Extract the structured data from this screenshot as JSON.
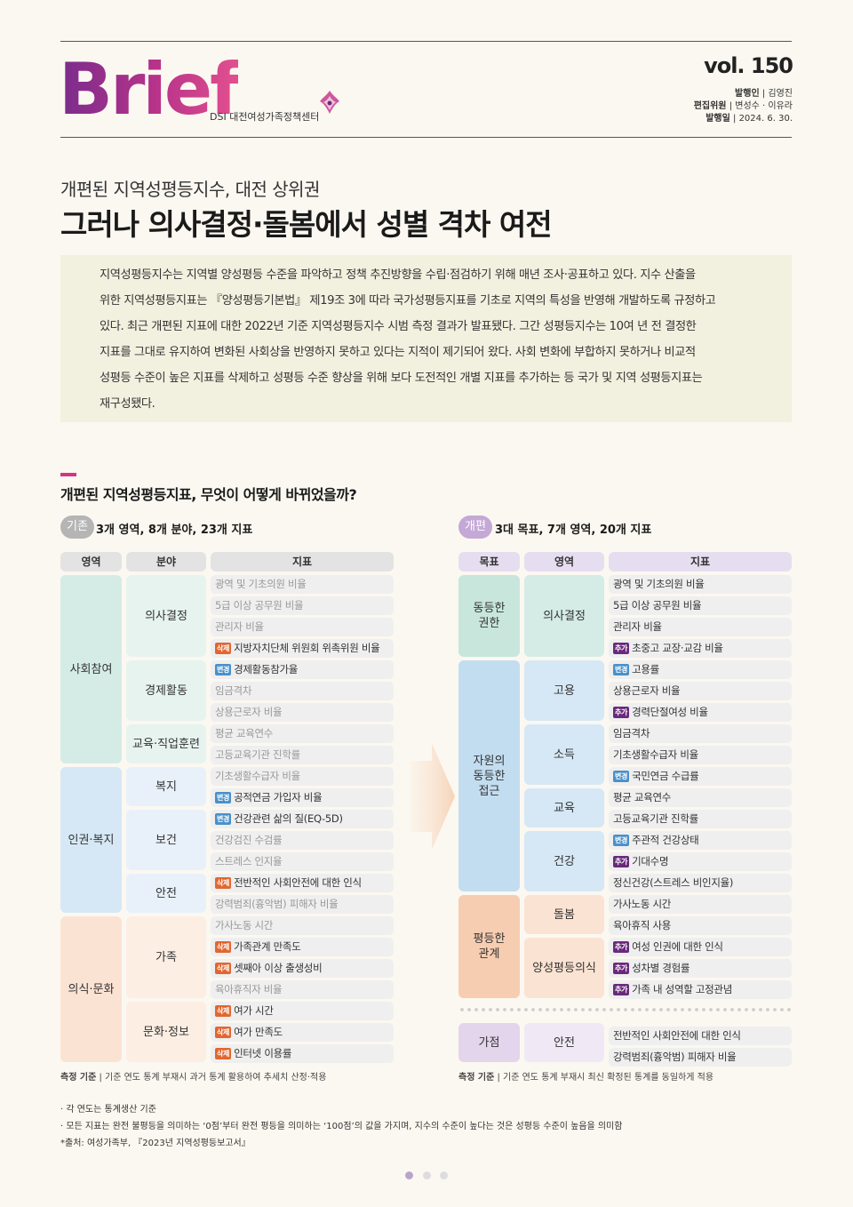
{
  "header": {
    "logo": "Brief",
    "org": "DSI 대전여성가족정책센터",
    "vol": "vol. 150",
    "publisher_label": "발행인",
    "publisher": "| 김영진",
    "editors_label": "편집위원",
    "editors": "| 변성수 · 이유라",
    "date_label": "발행일",
    "date": "| 2024. 6. 30."
  },
  "article": {
    "subtitle": "개편된 지역성평등지수, 대전 상위권",
    "title": "그러나 의사결정·돌봄에서 성별 격차 여전",
    "summary": [
      "지역성평등지수는 지역별 양성평등 수준을 파악하고 정책 추진방향을 수립·점검하기 위해 매년 조사·공표하고 있다. 지수 산출을",
      "위한 지역성평등지표는 『양성평등기본법』 제19조 3에 따라 국가성평등지표를 기초로 지역의 특성을 반영해 개발하도록 규정하고",
      "있다. 최근 개편된 지표에 대한 2022년 기준 지역성평등지수 시범 측정 결과가 발표됐다. 그간 성평등지수는 10여 년 전 결정한",
      "지표를 그대로 유지하여 변화된 사회상을 반영하지 못하고 있다는 지적이 제기되어 왔다. 사회 변화에 부합하지 못하거나 비교적",
      "성평등 수준이 높은 지표를 삭제하고 성평등 수준 향상을 위해 보다 도전적인 개별 지표를 추가하는 등 국가 및 지역 성평등지표는",
      "재구성됐다."
    ]
  },
  "section": {
    "title": "개편된 지역성평등지표, 무엇이 어떻게 바뀌었을까?"
  },
  "tags": {
    "del": "삭제",
    "chg": "변경",
    "add": "추가"
  },
  "old": {
    "badge": "기존",
    "title": "3개 영역, 8개 분야, 23개 지표",
    "headers": [
      "영역",
      "분야",
      "지표"
    ],
    "areas": [
      "사회참여",
      "인권·복지",
      "의식·문화"
    ],
    "fields": [
      "의사결정",
      "경제활동",
      "교육·직업훈련",
      "복지",
      "보건",
      "안전",
      "가족",
      "문화·정보"
    ],
    "indicators": [
      {
        "tag": "",
        "text": "광역 및 기초의원 비율"
      },
      {
        "tag": "",
        "text": "5급 이상 공무원 비율"
      },
      {
        "tag": "",
        "text": "관리자 비율"
      },
      {
        "tag": "del",
        "text": "지방자치단체 위원회 위촉위원 비율"
      },
      {
        "tag": "chg",
        "text": "경제활동참가율"
      },
      {
        "tag": "",
        "text": "임금격차"
      },
      {
        "tag": "",
        "text": "상용근로자 비율"
      },
      {
        "tag": "",
        "text": "평균 교육연수"
      },
      {
        "tag": "",
        "text": "고등교육기관 진학률"
      },
      {
        "tag": "",
        "text": "기초생활수급자 비율"
      },
      {
        "tag": "chg",
        "text": "공적연금 가입자 비율"
      },
      {
        "tag": "chg",
        "text": "건강관련 삶의 질(EQ-5D)"
      },
      {
        "tag": "",
        "text": "건강검진 수검률"
      },
      {
        "tag": "",
        "text": "스트레스 인지율"
      },
      {
        "tag": "del",
        "text": "전반적인 사회안전에 대한 인식"
      },
      {
        "tag": "",
        "text": "강력범죄(흉악범) 피해자 비율"
      },
      {
        "tag": "",
        "text": "가사노동 시간"
      },
      {
        "tag": "del",
        "text": "가족관계 만족도"
      },
      {
        "tag": "del",
        "text": "셋째아 이상 출생성비"
      },
      {
        "tag": "",
        "text": "육아휴직자 비율"
      },
      {
        "tag": "del",
        "text": "여가 시간"
      },
      {
        "tag": "del",
        "text": "여가 만족도"
      },
      {
        "tag": "del",
        "text": "인터넷 이용률"
      }
    ],
    "footnote_label": "측정 기준",
    "footnote": "| 기준 연도 통계 부재시 과거 통계 활용하여 추세치 산정·적용"
  },
  "new": {
    "badge": "개편",
    "title": "3대 목표, 7개 영역, 20개 지표",
    "headers": [
      "목표",
      "영역",
      "지표"
    ],
    "goals": [
      "동등한\n권한",
      "자원의\n동등한\n접근",
      "평등한\n관계",
      "가점"
    ],
    "areas": [
      "의사결정",
      "고용",
      "소득",
      "교육",
      "건강",
      "돌봄",
      "양성평등의식",
      "안전"
    ],
    "indicators": [
      {
        "tag": "",
        "text": "광역 및 기초의원 비율"
      },
      {
        "tag": "",
        "text": "5급 이상 공무원 비율"
      },
      {
        "tag": "",
        "text": "관리자 비율"
      },
      {
        "tag": "add",
        "text": "초중고 교장·교감 비율"
      },
      {
        "tag": "chg",
        "text": "고용률"
      },
      {
        "tag": "",
        "text": "상용근로자 비율"
      },
      {
        "tag": "add",
        "text": "경력단절여성 비율"
      },
      {
        "tag": "",
        "text": "임금격차"
      },
      {
        "tag": "",
        "text": "기초생활수급자 비율"
      },
      {
        "tag": "chg",
        "text": "국민연금 수급률"
      },
      {
        "tag": "",
        "text": "평균 교육연수"
      },
      {
        "tag": "",
        "text": "고등교육기관 진학률"
      },
      {
        "tag": "chg",
        "text": "주관적 건강상태"
      },
      {
        "tag": "add",
        "text": "기대수명"
      },
      {
        "tag": "",
        "text": "정신건강(스트레스 비인지율)"
      },
      {
        "tag": "",
        "text": "가사노동 시간"
      },
      {
        "tag": "",
        "text": "육아휴직 사용"
      },
      {
        "tag": "add",
        "text": "여성 인권에 대한 인식"
      },
      {
        "tag": "add",
        "text": "성차별 경험률"
      },
      {
        "tag": "add",
        "text": "가족 내 성역할 고정관념"
      },
      {
        "tag": "",
        "text": "전반적인 사회안전에 대한 인식"
      },
      {
        "tag": "",
        "text": "강력범죄(흉악범) 피해자 비율"
      }
    ],
    "footnote_label": "측정 기준",
    "footnote": "| 기준 연도 통계 부재시 최신 확정된 통계를 동일하게 적용"
  },
  "notes": [
    "· 각 연도는 통계생산 기준",
    "· 모든 지표는 완전 불평등을 의미하는 ‘0점’부터 완전 평등을 의미하는 ‘100점’의 값을 가지며, 지수의 수준이 높다는 것은 성평등 수준이 높음을 의미함",
    "*출처: 여성가족부, 『2023년 지역성평등보고서』"
  ],
  "colors": {
    "social": "#d5ece6",
    "welfare": "#d6e8f5",
    "culture": "#fbe3d3",
    "equal_rights": "#c8e6dc",
    "resource": "#c3ddf0",
    "relation": "#f7cdb1",
    "bonus": "#e3d5ec",
    "tag_del": "#e0672f",
    "tag_chg": "#4a90c9",
    "tag_add": "#6a2a7c"
  }
}
